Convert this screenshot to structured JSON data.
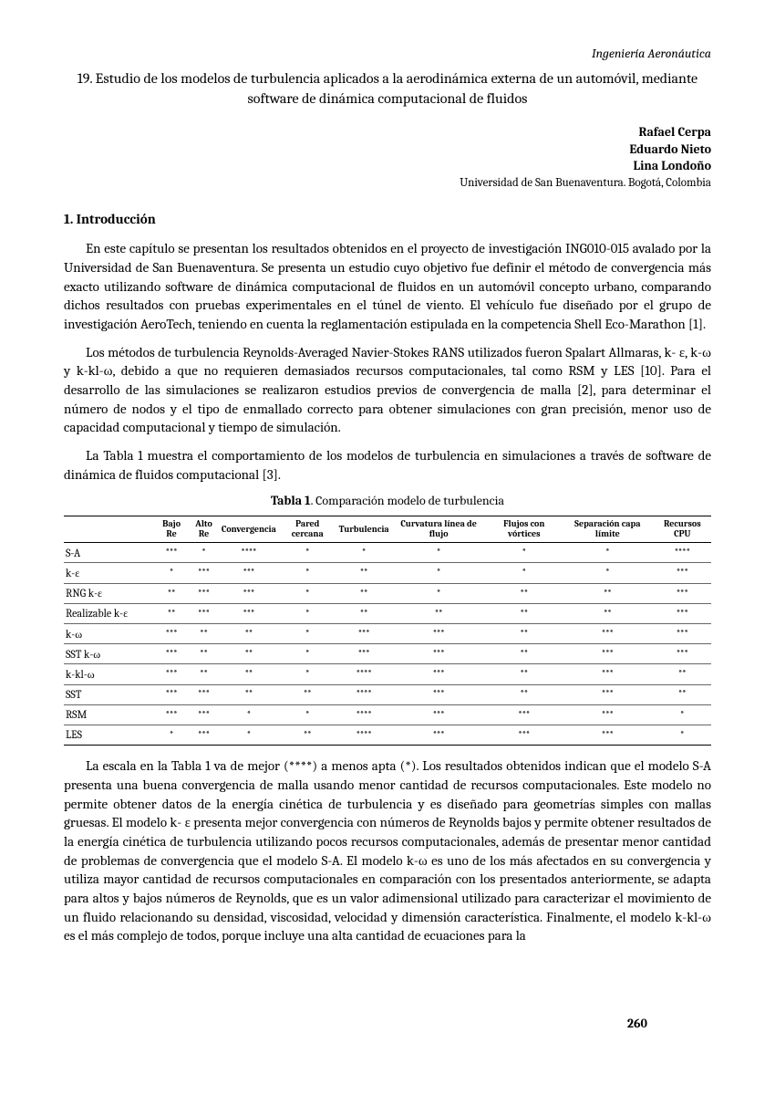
{
  "header": {
    "subject": "Ingeniería Aeronáutica",
    "title": "19. Estudio de los modelos de turbulencia aplicados a la aerodinámica externa de un automóvil, mediante software de dinámica computacional de fluidos"
  },
  "authors": {
    "names": [
      "Rafael Cerpa",
      "Eduardo Nieto",
      "Lina Londoño"
    ],
    "affiliation": "Universidad de San Buenaventura. Bogotá, Colombia"
  },
  "section1": {
    "heading": "1.  Introducción",
    "p1": "En este capítulo se presentan los resultados obtenidos en el proyecto de investigación ING010-015 avalado por la Universidad de San Buenaventura. Se presenta un estudio cuyo objetivo fue definir el método de convergencia más exacto utilizando software de dinámica computacional de fluidos en un automóvil concepto urbano, comparando dichos resultados con pruebas experimentales en el túnel de viento. El vehículo fue diseñado por el grupo de investigación AeroTech, teniendo en cuenta la reglamentación estipulada en la competencia Shell Eco-Marathon [1].",
    "p2": "Los métodos de turbulencia Reynolds-Averaged Navier-Stokes RANS utilizados fueron Spalart Allmaras, k- ε, k-ω y k-kl-ω, debido a que no requieren demasiados recursos computacionales, tal como RSM y LES [10]. Para el desarrollo de las simulaciones se realizaron estudios previos de convergencia de malla [2], para determinar el número de nodos y el tipo de enmallado correcto para obtener simulaciones con gran precisión, menor uso de capacidad computacional y tiempo de simulación.",
    "p3": "La Tabla 1 muestra el comportamiento de los modelos de turbulencia en simulaciones a través de software de dinámica de fluidos computacional [3]."
  },
  "table1": {
    "caption_bold": "Tabla 1",
    "caption_rest": ". Comparación modelo de turbulencia",
    "columns": [
      "",
      "Bajo Re",
      "Alto Re",
      "Convergencia",
      "Pared cercana",
      "Turbulencia",
      "Curvatura línea de flujo",
      "Flujos con vórtices",
      "Separación capa límite",
      "Recursos CPU"
    ],
    "rows": [
      {
        "label": "S-A",
        "v": [
          "***",
          "*",
          "****",
          "*",
          "*",
          "*",
          "*",
          "*",
          "****"
        ]
      },
      {
        "label": "k-ε",
        "v": [
          "*",
          "***",
          "***",
          "*",
          "**",
          "*",
          "*",
          "*",
          "***"
        ]
      },
      {
        "label": "RNG k-ε",
        "v": [
          "**",
          "***",
          "***",
          "*",
          "**",
          "*",
          "**",
          "**",
          "***"
        ]
      },
      {
        "label": "Realizable k-ε",
        "v": [
          "**",
          "***",
          "***",
          "*",
          "**",
          "**",
          "**",
          "**",
          "***"
        ]
      },
      {
        "label": "k-ω",
        "v": [
          "***",
          "**",
          "**",
          "*",
          "***",
          "***",
          "**",
          "***",
          "***"
        ]
      },
      {
        "label": "SST k-ω",
        "v": [
          "***",
          "**",
          "**",
          "*",
          "***",
          "***",
          "**",
          "***",
          "***"
        ]
      },
      {
        "label": "k-kl-ω",
        "v": [
          "***",
          "**",
          "**",
          "*",
          "****",
          "***",
          "**",
          "***",
          "**"
        ]
      },
      {
        "label": "SST",
        "v": [
          "***",
          "***",
          "**",
          "**",
          "****",
          "***",
          "**",
          "***",
          "**"
        ]
      },
      {
        "label": "RSM",
        "v": [
          "***",
          "***",
          "*",
          "*",
          "****",
          "***",
          "***",
          "***",
          "*"
        ]
      },
      {
        "label": "LES",
        "v": [
          "*",
          "***",
          "*",
          "**",
          "****",
          "***",
          "***",
          "***",
          "*"
        ]
      }
    ]
  },
  "post_table": {
    "p4": "La escala en la Tabla 1 va de mejor (****) a menos apta (*). Los resultados obtenidos indican que el modelo S-A presenta una buena convergencia de malla usando menor cantidad de recursos computacionales. Este modelo no permite obtener datos de la energía cinética de turbulencia y es diseñado para geometrías simples con mallas gruesas. El modelo k- ε presenta mejor convergencia con números de Reynolds bajos y permite obtener resultados de la energía cinética de turbulencia utilizando pocos recursos computacionales, además de presentar menor cantidad de problemas de convergencia que el modelo S-A. El modelo k-ω es uno de los más afectados en su convergencia y utiliza mayor cantidad de recursos computacionales en comparación con los presentados anteriormente, se adapta para altos y bajos números de Reynolds, que es un valor adimensional utilizado para caracterizar el movimiento de un fluido relacionando su densidad, viscosidad, velocidad y dimensión característica. Finalmente, el modelo k-kl-ω es el más complejo de todos, porque incluye una alta cantidad de ecuaciones para la"
  },
  "page_number": "260"
}
